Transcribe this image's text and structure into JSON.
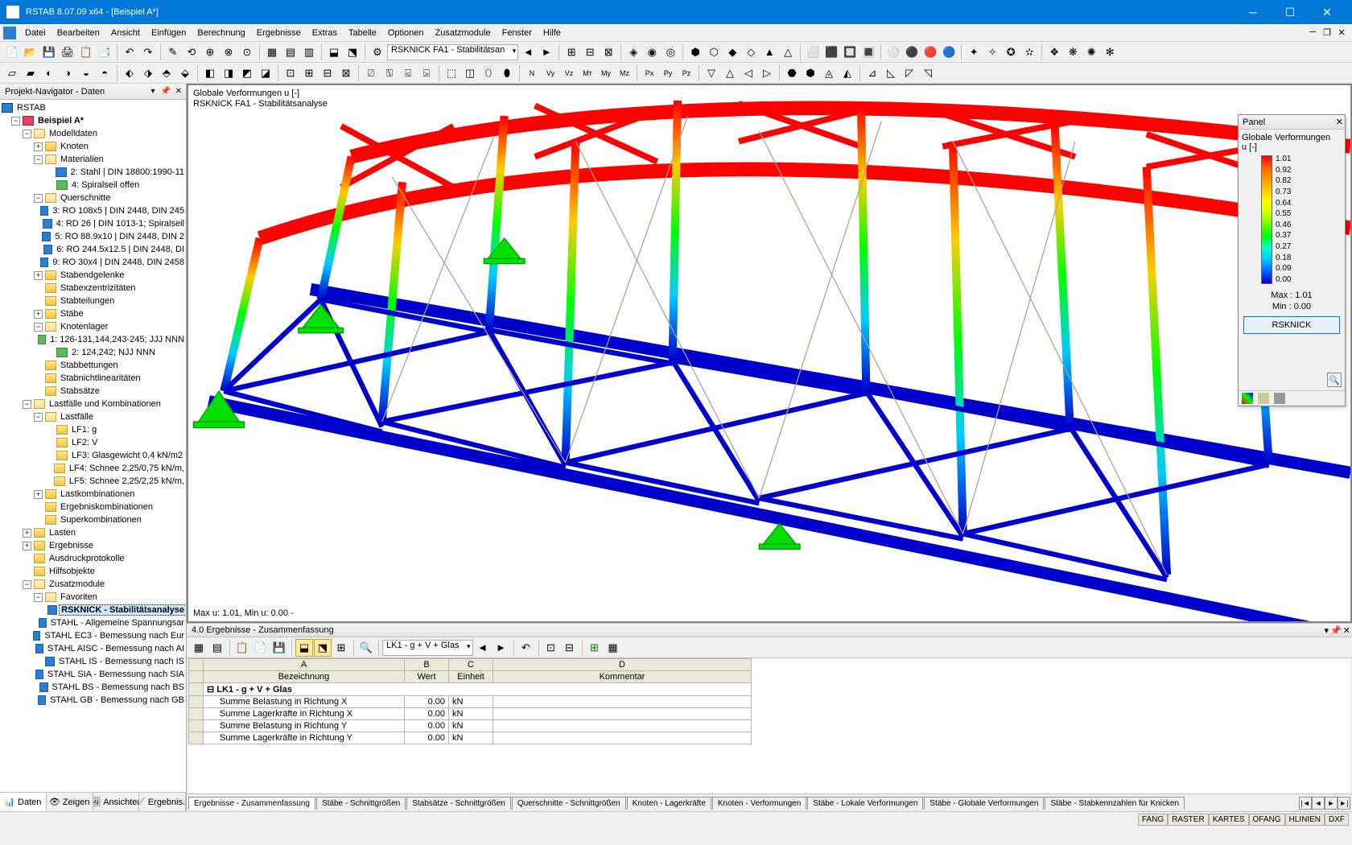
{
  "window": {
    "title": "RSTAB 8.07.09 x64 - [Beispiel A*]"
  },
  "menu": {
    "items": [
      "Datei",
      "Bearbeiten",
      "Ansicht",
      "Einfügen",
      "Berechnung",
      "Ergebnisse",
      "Extras",
      "Tabelle",
      "Optionen",
      "Zusatzmodule",
      "Fenster",
      "Hilfe"
    ]
  },
  "toolbar1_combo": "RSKNICK FA1 - Stabilitätsan",
  "navigator": {
    "title": "Projekt-Navigator - Daten",
    "root": "RSTAB",
    "project": "Beispiel A*",
    "nodes": [
      {
        "d": 1,
        "e": "-",
        "i": "model",
        "t": "Beispiel A*",
        "bold": true
      },
      {
        "d": 2,
        "e": "-",
        "i": "folder-o",
        "t": "Modelldaten"
      },
      {
        "d": 3,
        "e": "+",
        "i": "folder",
        "t": "Knoten"
      },
      {
        "d": 3,
        "e": "-",
        "i": "folder-o",
        "t": "Materialien"
      },
      {
        "d": 4,
        "e": "",
        "i": "blue",
        "t": "2: Stahl | DIN 18800:1990-11"
      },
      {
        "d": 4,
        "e": "",
        "i": "green",
        "t": "4: Spiralseil offen"
      },
      {
        "d": 3,
        "e": "-",
        "i": "folder-o",
        "t": "Querschnitte"
      },
      {
        "d": 4,
        "e": "",
        "i": "blue",
        "t": "3: RO 108x5 | DIN 2448, DIN 245"
      },
      {
        "d": 4,
        "e": "",
        "i": "blue",
        "t": "4: RD 26 | DIN 1013-1; Spiralseil"
      },
      {
        "d": 4,
        "e": "",
        "i": "blue",
        "t": "5: RO 88.9x10 | DIN 2448, DIN 2"
      },
      {
        "d": 4,
        "e": "",
        "i": "blue",
        "t": "6: RO 244.5x12.5 | DIN 2448, DI"
      },
      {
        "d": 4,
        "e": "",
        "i": "blue",
        "t": "9: RO 30x4 | DIN 2448, DIN 2458"
      },
      {
        "d": 3,
        "e": "+",
        "i": "folder",
        "t": "Stabendgelenke"
      },
      {
        "d": 3,
        "e": "",
        "i": "folder",
        "t": "Stabexzentrizitäten"
      },
      {
        "d": 3,
        "e": "",
        "i": "folder",
        "t": "Stabteilungen"
      },
      {
        "d": 3,
        "e": "+",
        "i": "folder",
        "t": "Stäbe"
      },
      {
        "d": 3,
        "e": "-",
        "i": "folder-o",
        "t": "Knotenlager"
      },
      {
        "d": 4,
        "e": "",
        "i": "green",
        "t": "1: 126-131,144,243-245; JJJ NNN"
      },
      {
        "d": 4,
        "e": "",
        "i": "green",
        "t": "2: 124,242; NJJ NNN"
      },
      {
        "d": 3,
        "e": "",
        "i": "folder",
        "t": "Stabbettungen"
      },
      {
        "d": 3,
        "e": "",
        "i": "folder",
        "t": "Stabnichtlinearitäten"
      },
      {
        "d": 3,
        "e": "",
        "i": "folder",
        "t": "Stabsätze"
      },
      {
        "d": 2,
        "e": "-",
        "i": "folder-o",
        "t": "Lastfälle und Kombinationen"
      },
      {
        "d": 3,
        "e": "-",
        "i": "folder-o",
        "t": "Lastfälle"
      },
      {
        "d": 4,
        "e": "",
        "i": "folder",
        "t": "LF1: g"
      },
      {
        "d": 4,
        "e": "",
        "i": "folder",
        "t": "LF2: V"
      },
      {
        "d": 4,
        "e": "",
        "i": "folder",
        "t": "LF3: Glasgewicht 0,4 kN/m2"
      },
      {
        "d": 4,
        "e": "",
        "i": "folder",
        "t": "LF4: Schnee 2,25/0,75 kN/m,"
      },
      {
        "d": 4,
        "e": "",
        "i": "folder",
        "t": "LF5: Schnee 2,25/2,25 kN/m,"
      },
      {
        "d": 3,
        "e": "+",
        "i": "folder",
        "t": "Lastkombinationen"
      },
      {
        "d": 3,
        "e": "",
        "i": "folder",
        "t": "Ergebniskombinationen"
      },
      {
        "d": 3,
        "e": "",
        "i": "folder",
        "t": "Superkombinationen"
      },
      {
        "d": 2,
        "e": "+",
        "i": "folder",
        "t": "Lasten"
      },
      {
        "d": 2,
        "e": "+",
        "i": "folder",
        "t": "Ergebnisse"
      },
      {
        "d": 2,
        "e": "",
        "i": "folder",
        "t": "Ausdruckprotokolle"
      },
      {
        "d": 2,
        "e": "",
        "i": "folder",
        "t": "Hilfsobjekte"
      },
      {
        "d": 2,
        "e": "-",
        "i": "folder-o",
        "t": "Zusatzmodule"
      },
      {
        "d": 3,
        "e": "-",
        "i": "folder-o",
        "t": "Favoriten"
      },
      {
        "d": 4,
        "e": "",
        "i": "blue",
        "t": "RSKNICK - Stabilitätsanalyse",
        "bold": true,
        "sel": true
      },
      {
        "d": 4,
        "e": "",
        "i": "blue",
        "t": "STAHL - Allgemeine Spannungsar"
      },
      {
        "d": 4,
        "e": "",
        "i": "blue",
        "t": "STAHL EC3 - Bemessung nach Eur"
      },
      {
        "d": 4,
        "e": "",
        "i": "blue",
        "t": "STAHL AISC - Bemessung nach AI"
      },
      {
        "d": 4,
        "e": "",
        "i": "blue",
        "t": "STAHL IS - Bemessung nach IS"
      },
      {
        "d": 4,
        "e": "",
        "i": "blue",
        "t": "STAHL SIA - Bemessung nach SIA"
      },
      {
        "d": 4,
        "e": "",
        "i": "blue",
        "t": "STAHL BS - Bemessung nach BS"
      },
      {
        "d": 4,
        "e": "",
        "i": "blue",
        "t": "STAHL GB - Bemessung nach GB"
      }
    ],
    "tabs": [
      "Daten",
      "Zeigen",
      "Ansichten",
      "Ergebnis..."
    ]
  },
  "viewport": {
    "line1": "Globale Verformungen u [-]",
    "line2": "RSKNICK FA1 - Stabilitätsanalyse",
    "footer": "Max u: 1.01, Min u: 0.00 -"
  },
  "panel": {
    "title": "Panel",
    "subtitle": "Globale Verformungen",
    "unit": "u [-]",
    "scale": [
      "1.01",
      "0.92",
      "0.82",
      "0.73",
      "0.64",
      "0.55",
      "0.46",
      "0.37",
      "0.27",
      "0.18",
      "0.09",
      "0.00"
    ],
    "max_label": "Max :",
    "max_val": "1.01",
    "min_label": "Min :",
    "min_val": "0.00",
    "button": "RSKNICK"
  },
  "results": {
    "title": "4.0 Ergebnisse - Zusammenfassung",
    "combo": "LK1 - g + V + Glas",
    "cols_letter": [
      "",
      "A",
      "B",
      "C",
      "D"
    ],
    "cols": [
      "",
      "Bezeichnung",
      "Wert",
      "Einheit",
      "Kommentar"
    ],
    "group": "LK1 - g + V + Glas",
    "rows": [
      [
        "",
        "Summe Belastung in Richtung X",
        "0.00",
        "kN",
        ""
      ],
      [
        "",
        "Summe Lagerkräfte in Richtung X",
        "0.00",
        "kN",
        ""
      ],
      [
        "",
        "Summe Belastung in Richtung Y",
        "0.00",
        "kN",
        ""
      ],
      [
        "",
        "Summe Lagerkräfte in Richtung Y",
        "0.00",
        "kN",
        ""
      ]
    ],
    "tabs": [
      "Ergebnisse - Zusammenfassung",
      "Stäbe - Schnittgrößen",
      "Stabsätze - Schnittgrößen",
      "Querschnitte - Schnittgrößen",
      "Knoten - Lagerkräfte",
      "Knoten - Verformungen",
      "Stäbe - Lokale Verformungen",
      "Stäbe - Globale Verformungen",
      "Stäbe - Stabkennzahlen für Knicken"
    ]
  },
  "statusbar": {
    "cells": [
      "FANG",
      "RASTER",
      "KARTES",
      "OFANG",
      "HLINIEN",
      "DXF"
    ]
  },
  "colors": {
    "accent": "#0078d7",
    "red": "#ff0000",
    "blue": "#0000cc",
    "green": "#00cc00"
  }
}
